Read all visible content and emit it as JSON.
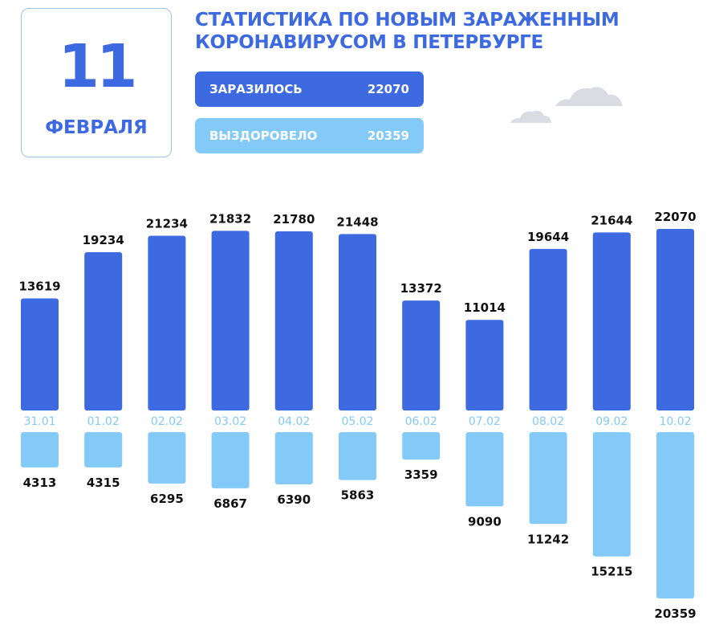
{
  "date": {
    "day": "11",
    "month": "ФЕВРАЛЯ"
  },
  "title": {
    "line1": "СТАТИСТИКА ПО НОВЫМ ЗАРАЖЕННЫМ",
    "line2": "КОРОНАВИРУСОМ В ПЕТЕРБУРГЕ"
  },
  "summary": {
    "infected_label": "ЗАРАЗИЛОСЬ",
    "infected_value": "22070",
    "recovered_label": "ВЫЗДОРОВЕЛО",
    "recovered_value": "20359"
  },
  "colors": {
    "infected": "#3d69e1",
    "recovered": "#84caf8",
    "cloud": "#d9dde3",
    "card_border": "#9ec3ea"
  },
  "icons": [
    "cloud-icon",
    "cloud-icon"
  ],
  "chart_data": {
    "type": "bar",
    "categories": [
      "31.01",
      "01.02",
      "02.02",
      "03.02",
      "04.02",
      "05.02",
      "06.02",
      "07.02",
      "08.02",
      "09.02",
      "10.02"
    ],
    "series": [
      {
        "name": "ЗАРАЗИЛОСЬ",
        "values": [
          13619,
          19234,
          21234,
          21832,
          21780,
          21448,
          13372,
          11014,
          19644,
          21644,
          22070
        ]
      },
      {
        "name": "ВЫЗДОРОВЕЛО",
        "values": [
          4313,
          4315,
          6295,
          6867,
          6390,
          5863,
          3359,
          9090,
          11242,
          15215,
          20359
        ]
      }
    ],
    "xlabel": "",
    "ylabel": "",
    "grid": false,
    "layout": "diverging: infected bars above the date row, recovered bars below"
  }
}
